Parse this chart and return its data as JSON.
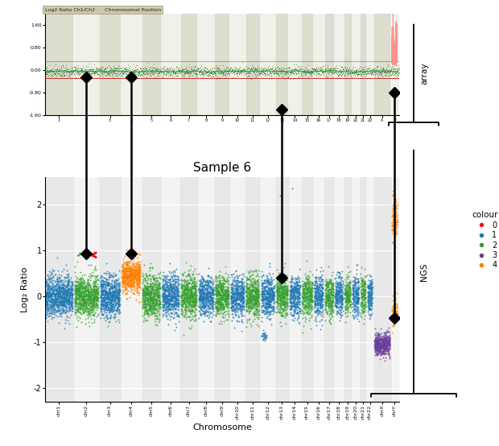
{
  "title_ngs": "Sample 6",
  "xlabel": "Chromosome",
  "ylabel_ngs": "Log₂ Ratio",
  "chromosomes": [
    "chr1",
    "chr2",
    "chr3",
    "chr4",
    "chr5",
    "chr6",
    "chr7",
    "chr8",
    "chr9",
    "chr10",
    "chr11",
    "chr12",
    "chr13",
    "chr14",
    "chr15",
    "chr16",
    "chr17",
    "chr18",
    "chr19",
    "chr20",
    "chr21",
    "chr22",
    "chrX",
    "chrY"
  ],
  "color_map": {
    "0": "#e31a1c",
    "1": "#1f78b4",
    "2": "#33a02c",
    "3": "#6a3d9a",
    "4": "#ff7f00"
  },
  "chr_colors": [
    1,
    2,
    1,
    4,
    2,
    1,
    2,
    1,
    2,
    1,
    2,
    1,
    2,
    1,
    2,
    1,
    2,
    1,
    2,
    1,
    2,
    1,
    3,
    4
  ],
  "background_color": "#e8e8e8",
  "array_bg": "#f5f5f0",
  "legend_title": "colour",
  "legend_items": [
    "0",
    "1",
    "2",
    "3",
    "4"
  ],
  "label_fontsize": 8,
  "title_fontsize": 11,
  "chr_sizes": [
    280,
    240,
    200,
    190,
    180,
    170,
    160,
    148,
    138,
    134,
    135,
    133,
    115,
    107,
    102,
    90,
    83,
    78,
    59,
    63,
    48,
    51,
    155,
    57
  ]
}
